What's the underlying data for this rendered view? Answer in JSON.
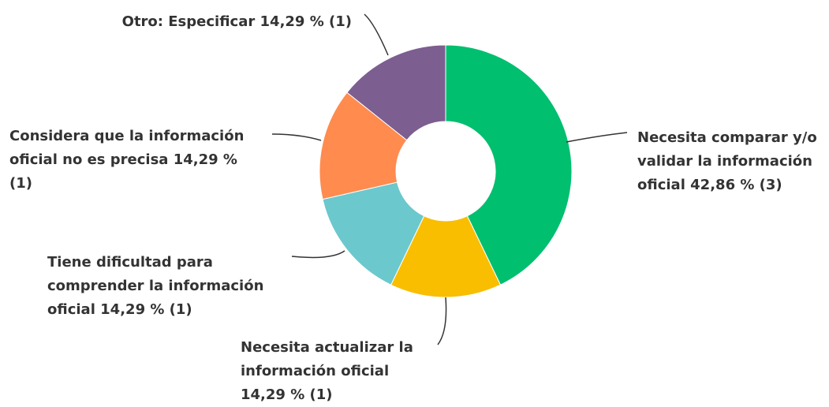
{
  "chart_data": {
    "type": "donut",
    "categories": [
      "Necesita comparar y/o validar la información oficial",
      "Necesita actualizar la información oficial",
      "Tiene dificultad para comprender la información oficial",
      "Considera que la información oficial no es precisa",
      "Otro: Especificar"
    ],
    "values": [
      42.86,
      14.29,
      14.29,
      14.29,
      14.29
    ],
    "value_labels": [
      "42,86 % (3)",
      "14,29 % (1)",
      "14,29 % (1)",
      "14,29 % (1)",
      "14,29 % (1)"
    ],
    "colors": [
      "#00bf6f",
      "#f9be00",
      "#6bc8cd",
      "#ff8b4f",
      "#7d5e90"
    ]
  }
}
